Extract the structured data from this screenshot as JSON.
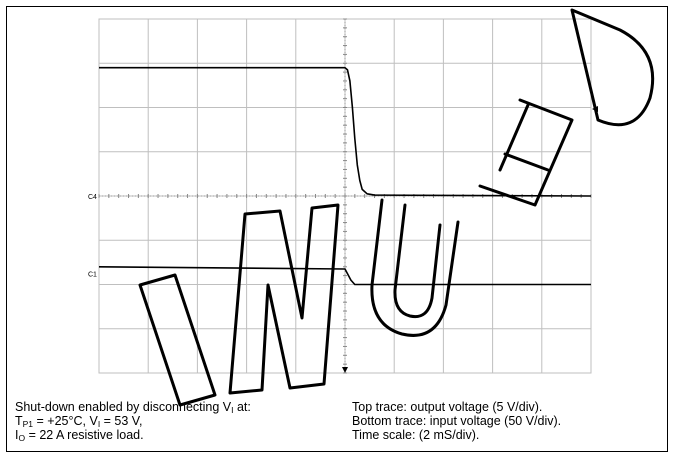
{
  "chart_data": {
    "type": "line",
    "title": "",
    "xlabel": "",
    "ylabel": "",
    "grid": true,
    "divisions": {
      "x": 10,
      "y": 8
    },
    "xlim": [
      0,
      10
    ],
    "ylim": [
      0,
      8
    ],
    "channel_markers": [
      "C4",
      "C1"
    ],
    "series": [
      {
        "x": [
          0,
          5.0,
          5.05,
          5.1,
          5.15,
          5.2,
          5.25,
          5.3,
          5.35,
          5.45,
          5.6,
          10
        ],
        "values": [
          6.9,
          6.9,
          6.85,
          6.6,
          6.0,
          5.3,
          4.7,
          4.35,
          4.15,
          4.05,
          4.02,
          4.0
        ]
      },
      {
        "x": [
          0,
          5.0,
          5.12,
          5.2,
          10
        ],
        "values": [
          2.4,
          2.35,
          2.1,
          2.0,
          2.0
        ]
      }
    ],
    "colors": {
      "trace": "#000000",
      "grid": "#bfbfbf",
      "watermark": "#000000"
    }
  },
  "caption": {
    "left": [
      [
        "Shut-down enabled by disconnecting V",
        "I",
        " at:"
      ],
      [
        "T",
        "P1",
        " = +25°C, V",
        "I",
        " = 53 V,"
      ],
      [
        "I",
        "O",
        " = 22 A resistive load."
      ]
    ],
    "right": [
      "Top trace: output voltage (5 V/div).",
      "Bottom trace: input voltage (50 V/div).",
      "Time scale: (2 mS/div)."
    ]
  },
  "watermark": {
    "text": "DISCONTINUED"
  }
}
